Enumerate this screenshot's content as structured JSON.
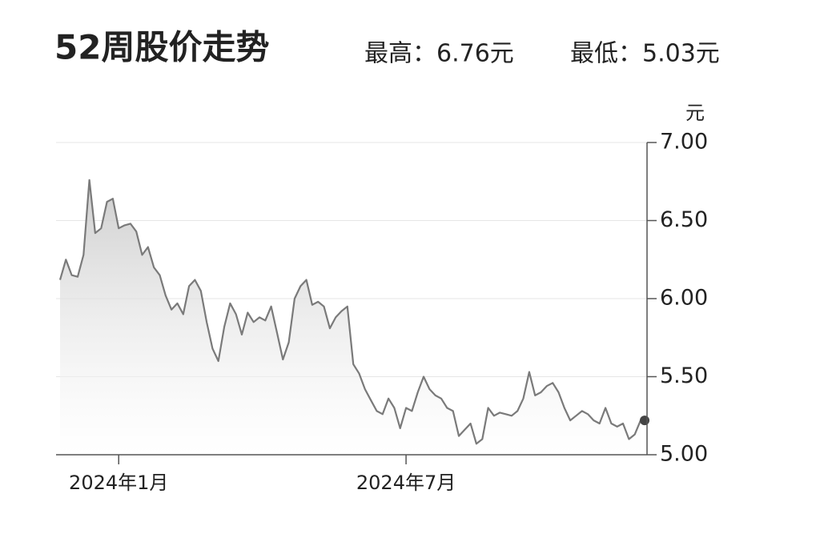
{
  "chart_data": {
    "type": "area",
    "title": "52周股价走势",
    "annotations": [
      "最高：6.76元",
      "最低：5.03元"
    ],
    "y_label": "元",
    "color": "#7a7a7a",
    "categories": [
      null,
      null,
      null,
      null,
      null,
      null,
      null,
      null,
      null,
      null,
      "2024年1月",
      null,
      null,
      null,
      null,
      null,
      null,
      null,
      null,
      null,
      null,
      null,
      null,
      null,
      null,
      null,
      null,
      null,
      null,
      null,
      null,
      null,
      null,
      null,
      null,
      null,
      null,
      null,
      null,
      null,
      null,
      null,
      null,
      null,
      null,
      null,
      null,
      null,
      null,
      null,
      null,
      null,
      null,
      null,
      null,
      null,
      null,
      null,
      null,
      "2024年7月",
      null,
      null,
      null,
      null,
      null,
      null,
      null,
      null,
      null,
      null,
      null,
      null,
      null,
      null,
      null,
      null,
      null,
      null,
      null,
      null,
      null,
      null,
      null,
      null,
      null,
      null,
      null,
      null,
      null,
      null,
      null,
      null,
      null,
      null,
      null,
      null,
      null,
      null,
      null,
      null
    ],
    "values": [
      6.12,
      6.25,
      6.15,
      6.14,
      6.28,
      6.76,
      6.42,
      6.45,
      6.62,
      6.64,
      6.45,
      6.47,
      6.48,
      6.43,
      6.28,
      6.33,
      6.2,
      6.15,
      6.02,
      5.93,
      5.97,
      5.9,
      6.08,
      6.12,
      6.05,
      5.85,
      5.68,
      5.6,
      5.82,
      5.97,
      5.9,
      5.77,
      5.91,
      5.85,
      5.88,
      5.86,
      5.95,
      5.78,
      5.61,
      5.72,
      6.0,
      6.08,
      6.12,
      5.96,
      5.98,
      5.95,
      5.81,
      5.88,
      5.92,
      5.95,
      5.58,
      5.52,
      5.42,
      5.35,
      5.28,
      5.26,
      5.36,
      5.3,
      5.17,
      5.3,
      5.28,
      5.4,
      5.5,
      5.42,
      5.38,
      5.36,
      5.3,
      5.28,
      5.12,
      5.16,
      5.2,
      5.07,
      5.1,
      5.3,
      5.25,
      5.27,
      5.26,
      5.25,
      5.28,
      5.36,
      5.53,
      5.38,
      5.4,
      5.44,
      5.46,
      5.4,
      5.3,
      5.22,
      5.25,
      5.28,
      5.26,
      5.22,
      5.2,
      5.3,
      5.2,
      5.18,
      5.2,
      5.1,
      5.13,
      5.22
    ],
    "ylim": [
      5,
      7
    ],
    "yticks": [
      {
        "value": 5,
        "label": "5.00"
      },
      {
        "value": 5.5,
        "label": "5.50"
      },
      {
        "value": 6,
        "label": "6.00"
      },
      {
        "value": 6.5,
        "label": "6.50"
      },
      {
        "value": 7,
        "label": "7.00"
      }
    ],
    "grid": true
  }
}
